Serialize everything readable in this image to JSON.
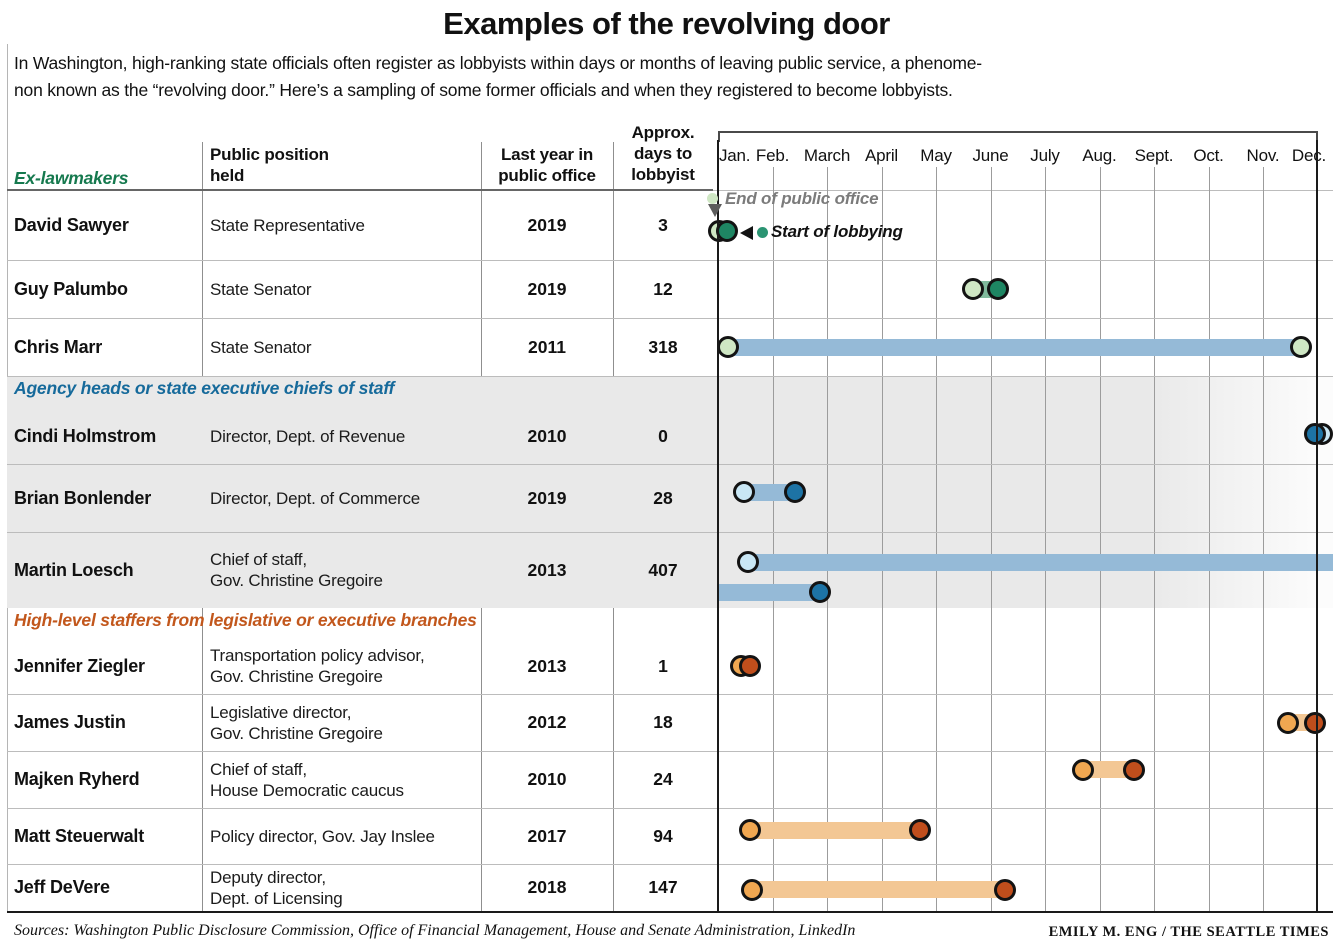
{
  "title": "Examples of the revolving door",
  "intro": {
    "line1": "In Washington, high-ranking state officials often register as lobbyists within days or months of leaving public service, a phenome-",
    "line2": "non known as the “revolving door.” Here’s a sampling of some former officials and when they registered to become lobbyists."
  },
  "table_headers": {
    "position_line1": "Public position",
    "position_line2": "held",
    "year_line1": "Last year in",
    "year_line2": "public office",
    "days_line1": "Approx.",
    "days_line2": "days to",
    "days_line3": "lobbyist"
  },
  "legend": {
    "end_label": "End of public office",
    "start_label": "Start of lobbying",
    "end_dot_color": "#cfe7c4",
    "start_dot_color": "#2a9472",
    "end_label_color": "#7b7b7b",
    "start_label_color": "#111111"
  },
  "footer": {
    "sources": "Sources: Washington Public Disclosure Commission, Office of Financial Management, House and Senate Administration, LinkedIn",
    "credit": "EMILY M. ENG / THE SEATTLE TIMES"
  },
  "chart_data": {
    "type": "gantt",
    "title": "Examples of the revolving door",
    "x_axis": {
      "unit": "months",
      "labels": [
        "Jan.",
        "Feb.",
        "March",
        "April",
        "May",
        "June",
        "July",
        "Aug.",
        "Sept.",
        "Oct.",
        "Nov.",
        "Dec."
      ],
      "note": "month positions below are 1-based: 1.0 = Jan 1, 12.0 = Dec 1"
    },
    "groups": [
      {
        "label": "Ex-lawmakers",
        "accent_color": "#15794e",
        "marker_light_color": "#cfe7c4",
        "marker_dark_color": "#1e8663",
        "rows": [
          {
            "name": "David Sawyer",
            "position_lines": [
              "State Representative"
            ],
            "year": "2019",
            "days": "3",
            "end_month_pos": 1.02,
            "start_month_pos": 1.17,
            "bar": false,
            "bar_color": null
          },
          {
            "name": "Guy Palumbo",
            "position_lines": [
              "State Senator"
            ],
            "year": "2019",
            "days": "12",
            "end_month_pos": 5.68,
            "start_month_pos": 6.14,
            "bar": true,
            "bar_color": "#80ba9c"
          },
          {
            "name": "Chris Marr",
            "position_lines": [
              "State Senator"
            ],
            "year": "2011",
            "days": "318",
            "end_month_pos": 1.18,
            "start_month_pos": 11.7,
            "bar": true,
            "bar_color": "#95bad7",
            "start_marker_style": "light"
          }
        ]
      },
      {
        "label": "Agency heads or state executive chiefs of staff",
        "accent_color": "#166a9b",
        "marker_light_color": "#c9e7f5",
        "marker_dark_color": "#1d73a5",
        "rows": [
          {
            "name": "Cindi Holmstrom",
            "position_lines": [
              "Director, Dept. of Revenue"
            ],
            "year": "2010",
            "days": "0",
            "end_month_pos": 12.08,
            "start_month_pos": 11.95,
            "bar": false,
            "bar_color": null
          },
          {
            "name": "Brian Bonlender",
            "position_lines": [
              "Director, Dept. of Commerce"
            ],
            "year": "2019",
            "days": "28",
            "end_month_pos": 1.48,
            "start_month_pos": 2.41,
            "bar": true,
            "bar_color": "#95bad7"
          },
          {
            "name": "Martin Loesch",
            "position_lines": [
              "Chief of staff,",
              "Gov. Christine Gregoire"
            ],
            "year": "2013",
            "days": "407",
            "end_month_pos": 1.55,
            "start_month_pos": 2.87,
            "bar": true,
            "bar_color": "#95bad7",
            "wrap": true
          }
        ]
      },
      {
        "label": "High-level staffers from legislative or executive branches",
        "accent_color": "#c2571c",
        "marker_light_color": "#f0a751",
        "marker_dark_color": "#c04e1c",
        "rows": [
          {
            "name": "Jennifer Ziegler",
            "position_lines": [
              "Transportation policy advisor,",
              "Gov. Christine Gregoire"
            ],
            "year": "2013",
            "days": "1",
            "end_month_pos": 1.42,
            "start_month_pos": 1.59,
            "bar": false,
            "bar_color": null
          },
          {
            "name": "James Justin",
            "position_lines": [
              "Legislative director,",
              "Gov. Christine Gregoire"
            ],
            "year": "2012",
            "days": "18",
            "end_month_pos": 11.46,
            "start_month_pos": 11.95,
            "bar": true,
            "bar_color": "#f3c794"
          },
          {
            "name": "Majken Ryherd",
            "position_lines": [
              "Chief of staff,",
              "House Democratic caucus"
            ],
            "year": "2010",
            "days": "24",
            "end_month_pos": 7.7,
            "start_month_pos": 8.63,
            "bar": true,
            "bar_color": "#f3c794"
          },
          {
            "name": "Matt Steuerwalt",
            "position_lines": [
              "Policy director, Gov. Jay Inslee"
            ],
            "year": "2017",
            "days": "94",
            "end_month_pos": 1.59,
            "start_month_pos": 4.71,
            "bar": true,
            "bar_color": "#f3c794"
          },
          {
            "name": "Jeff DeVere",
            "position_lines": [
              "Deputy director,",
              "Dept. of Licensing"
            ],
            "year": "2018",
            "days": "147",
            "end_month_pos": 1.62,
            "start_month_pos": 6.27,
            "bar": true,
            "bar_color": "#f3c794"
          }
        ]
      }
    ],
    "legend_entries": [
      {
        "label": "End of public office",
        "marker": "light circle"
      },
      {
        "label": "Start of lobbying",
        "marker": "dark circle"
      }
    ]
  }
}
